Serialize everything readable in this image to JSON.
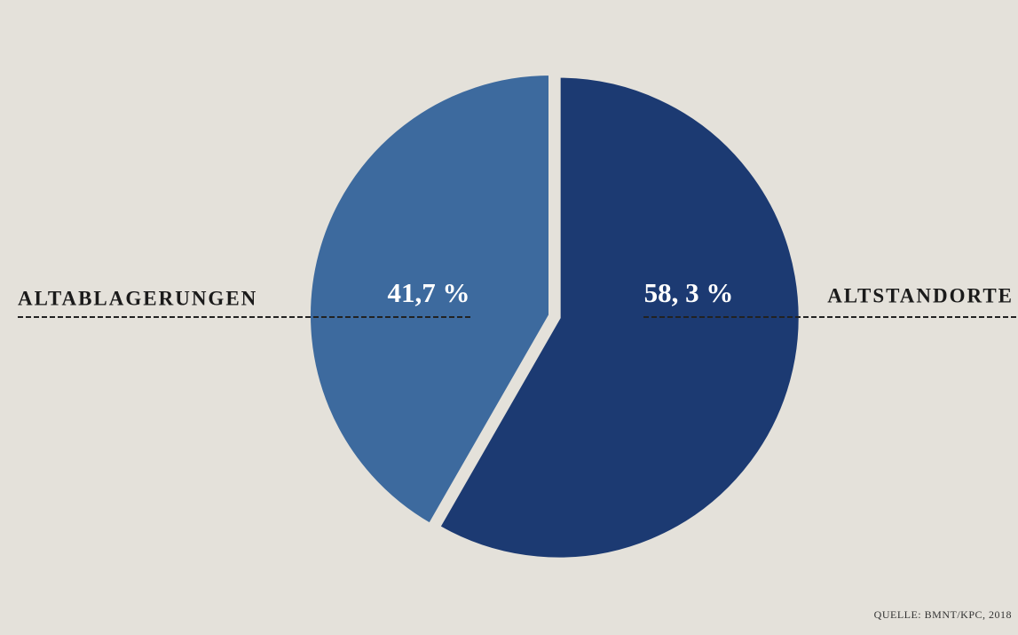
{
  "chart_data": {
    "type": "pie",
    "categories": [
      "ALTABLAGERUNGEN",
      "ALTSTANDORTE"
    ],
    "values": [
      41.7,
      58.3
    ],
    "value_labels": [
      "41,7 %",
      "58, 3 %"
    ],
    "colors": [
      "#3d6a9e",
      "#1c3a72"
    ],
    "source": "QUELLE: BMNT/KPC, 2018"
  }
}
